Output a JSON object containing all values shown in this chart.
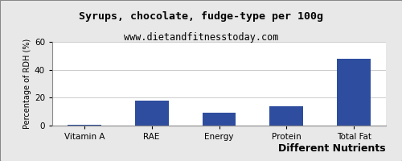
{
  "title": "Syrups, chocolate, fudge-type per 100g",
  "subtitle": "www.dietandfitnesstoday.com",
  "xlabel": "Different Nutrients",
  "ylabel": "Percentage of RDH (%)",
  "categories": [
    "Vitamin A",
    "RAE",
    "Energy",
    "Protein",
    "Total Fat"
  ],
  "values": [
    0.3,
    18,
    9,
    14,
    48
  ],
  "bar_color": "#2e4d9e",
  "ylim": [
    0,
    60
  ],
  "yticks": [
    0,
    20,
    40,
    60
  ],
  "background_color": "#e8e8e8",
  "plot_bg_color": "#ffffff",
  "title_fontsize": 9.5,
  "subtitle_fontsize": 8.5,
  "xlabel_fontsize": 9,
  "ylabel_fontsize": 7,
  "tick_fontsize": 7.5
}
